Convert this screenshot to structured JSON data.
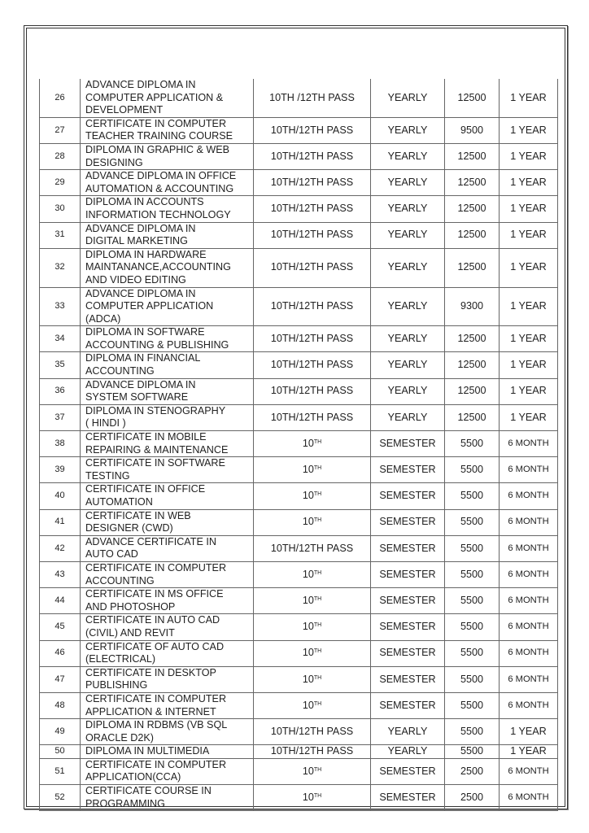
{
  "table": {
    "rows": [
      {
        "sn": "26",
        "course": "ADVANCE DIPLOMA IN\nCOMPUTER APPLICATION &\nDEVELOPMENT",
        "qual": "10TH /12TH PASS",
        "qual_sup": "",
        "mode": "YEARLY",
        "fee": "12500",
        "duration": "1 YEAR"
      },
      {
        "sn": "27",
        "course": "CERTIFICATE IN COMPUTER\nTEACHER TRAINING COURSE",
        "qual": "10TH/12TH PASS",
        "qual_sup": "",
        "mode": "YEARLY",
        "fee": "9500",
        "duration": "1 YEAR"
      },
      {
        "sn": "28",
        "course": "DIPLOMA IN GRAPHIC & WEB\nDESIGNING",
        "qual": "10TH/12TH PASS",
        "qual_sup": "",
        "mode": "YEARLY",
        "fee": "12500",
        "duration": "1 YEAR"
      },
      {
        "sn": "29",
        "course": "ADVANCE DIPLOMA IN OFFICE\nAUTOMATION & ACCOUNTING",
        "qual": "10TH/12TH PASS",
        "qual_sup": "",
        "mode": "YEARLY",
        "fee": "12500",
        "duration": "1 YEAR"
      },
      {
        "sn": "30",
        "course": "DIPLOMA IN ACCOUNTS\nINFORMATION TECHNOLOGY",
        "qual": "10TH/12TH PASS",
        "qual_sup": "",
        "mode": "YEARLY",
        "fee": "12500",
        "duration": "1 YEAR"
      },
      {
        "sn": "31",
        "course": "ADVANCE DIPLOMA IN\nDIGITAL MARKETING",
        "qual": "10TH/12TH PASS",
        "qual_sup": "",
        "mode": "YEARLY",
        "fee": "12500",
        "duration": "1 YEAR"
      },
      {
        "sn": "32",
        "course": "DIPLOMA IN HARDWARE\nMAINTANANCE,ACCOUNTING\nAND VIDEO EDITING",
        "qual": "10TH/12TH PASS",
        "qual_sup": "",
        "mode": "YEARLY",
        "fee": "12500",
        "duration": "1 YEAR"
      },
      {
        "sn": "33",
        "course": "ADVANCE DIPLOMA IN\nCOMPUTER APPLICATION\n(ADCA)",
        "qual": "10TH/12TH PASS",
        "qual_sup": "",
        "mode": "YEARLY",
        "fee": "9300",
        "duration": "1 YEAR"
      },
      {
        "sn": "34",
        "course": "DIPLOMA IN SOFTWARE\nACCOUNTING & PUBLISHING",
        "qual": "10TH/12TH PASS",
        "qual_sup": "",
        "mode": "YEARLY",
        "fee": "12500",
        "duration": "1 YEAR"
      },
      {
        "sn": "35",
        "course": "DIPLOMA IN FINANCIAL\nACCOUNTING",
        "qual": "10TH/12TH PASS",
        "qual_sup": "",
        "mode": "YEARLY",
        "fee": "12500",
        "duration": "1 YEAR"
      },
      {
        "sn": "36",
        "course": "ADVANCE DIPLOMA IN\nSYSTEM SOFTWARE",
        "qual": "10TH/12TH PASS",
        "qual_sup": "",
        "mode": "YEARLY",
        "fee": "12500",
        "duration": "1 YEAR"
      },
      {
        "sn": "37",
        "course": "DIPLOMA IN STENOGRAPHY\n ( HINDI )",
        "qual": "10TH/12TH PASS",
        "qual_sup": "",
        "mode": "YEARLY",
        "fee": "12500",
        "duration": "1 YEAR"
      },
      {
        "sn": "38",
        "course": "CERTIFICATE IN MOBILE\nREPAIRING & MAINTENANCE",
        "qual": "10",
        "qual_sup": "TH",
        "mode": "SEMESTER",
        "fee": "5500",
        "duration": "6 MONTH"
      },
      {
        "sn": "39",
        "course": "CERTIFICATE IN SOFTWARE\nTESTING",
        "qual": "10",
        "qual_sup": "TH",
        "mode": "SEMESTER",
        "fee": "5500",
        "duration": "6 MONTH"
      },
      {
        "sn": "40",
        "course": "CERTIFICATE IN OFFICE\nAUTOMATION",
        "qual": "10",
        "qual_sup": "TH",
        "mode": "SEMESTER",
        "fee": "5500",
        "duration": "6 MONTH"
      },
      {
        "sn": "41",
        "course": "CERTIFICATE IN WEB\nDESIGNER (CWD)",
        "qual": "10",
        "qual_sup": "TH",
        "mode": "SEMESTER",
        "fee": "5500",
        "duration": "6 MONTH"
      },
      {
        "sn": "42",
        "course": "ADVANCE CERTIFICATE IN\nAUTO CAD",
        "qual": "10TH/12TH PASS",
        "qual_sup": "",
        "mode": "SEMESTER",
        "fee": "5500",
        "duration": "6 MONTH"
      },
      {
        "sn": "43",
        "course": "CERTIFICATE IN COMPUTER\nACCOUNTING",
        "qual": "10",
        "qual_sup": "TH",
        "mode": "SEMESTER",
        "fee": "5500",
        "duration": "6 MONTH"
      },
      {
        "sn": "44",
        "course": "CERTIFICATE IN MS OFFICE\nAND PHOTOSHOP",
        "qual": "10",
        "qual_sup": "TH",
        "mode": "SEMESTER",
        "fee": "5500",
        "duration": "6 MONTH"
      },
      {
        "sn": "45",
        "course": "CERTIFICATE IN AUTO CAD\n(CIVIL) AND REVIT",
        "qual": "10",
        "qual_sup": "TH",
        "mode": "SEMESTER",
        "fee": "5500",
        "duration": "6 MONTH"
      },
      {
        "sn": "46",
        "course": "CERTIFICATE OF AUTO CAD\n(ELECTRICAL)",
        "qual": "10",
        "qual_sup": "TH",
        "mode": "SEMESTER",
        "fee": "5500",
        "duration": "6 MONTH"
      },
      {
        "sn": "47",
        "course": "CERTIFICATE IN DESKTOP\nPUBLISHING",
        "qual": "10",
        "qual_sup": "TH",
        "mode": "SEMESTER",
        "fee": "5500",
        "duration": "6 MONTH"
      },
      {
        "sn": "48",
        "course": "CERTIFICATE IN COMPUTER\nAPPLICATION & INTERNET",
        "qual": "10",
        "qual_sup": "TH",
        "mode": "SEMESTER",
        "fee": "5500",
        "duration": "6 MONTH"
      },
      {
        "sn": "49",
        "course": "DIPLOMA IN RDBMS (VB SQL\nORACLE D2K)",
        "qual": "10TH/12TH PASS",
        "qual_sup": "",
        "mode": "YEARLY",
        "fee": "5500",
        "duration": "1 YEAR"
      },
      {
        "sn": "50",
        "course": "DIPLOMA IN MULTIMEDIA",
        "qual": "10TH/12TH PASS",
        "qual_sup": "",
        "mode": "YEARLY",
        "fee": "5500",
        "duration": "1 YEAR"
      },
      {
        "sn": "51",
        "course": "CERTIFICATE IN COMPUTER\nAPPLICATION(CCA)",
        "qual": "10",
        "qual_sup": "TH",
        "mode": "SEMESTER",
        "fee": "2500",
        "duration": "6 MONTH"
      },
      {
        "sn": "52",
        "course": "CERTIFICATE COURSE IN\nPROGRAMMING",
        "qual": "10",
        "qual_sup": "TH",
        "mode": "SEMESTER",
        "fee": "2500",
        "duration": "6 MONTH"
      }
    ]
  }
}
